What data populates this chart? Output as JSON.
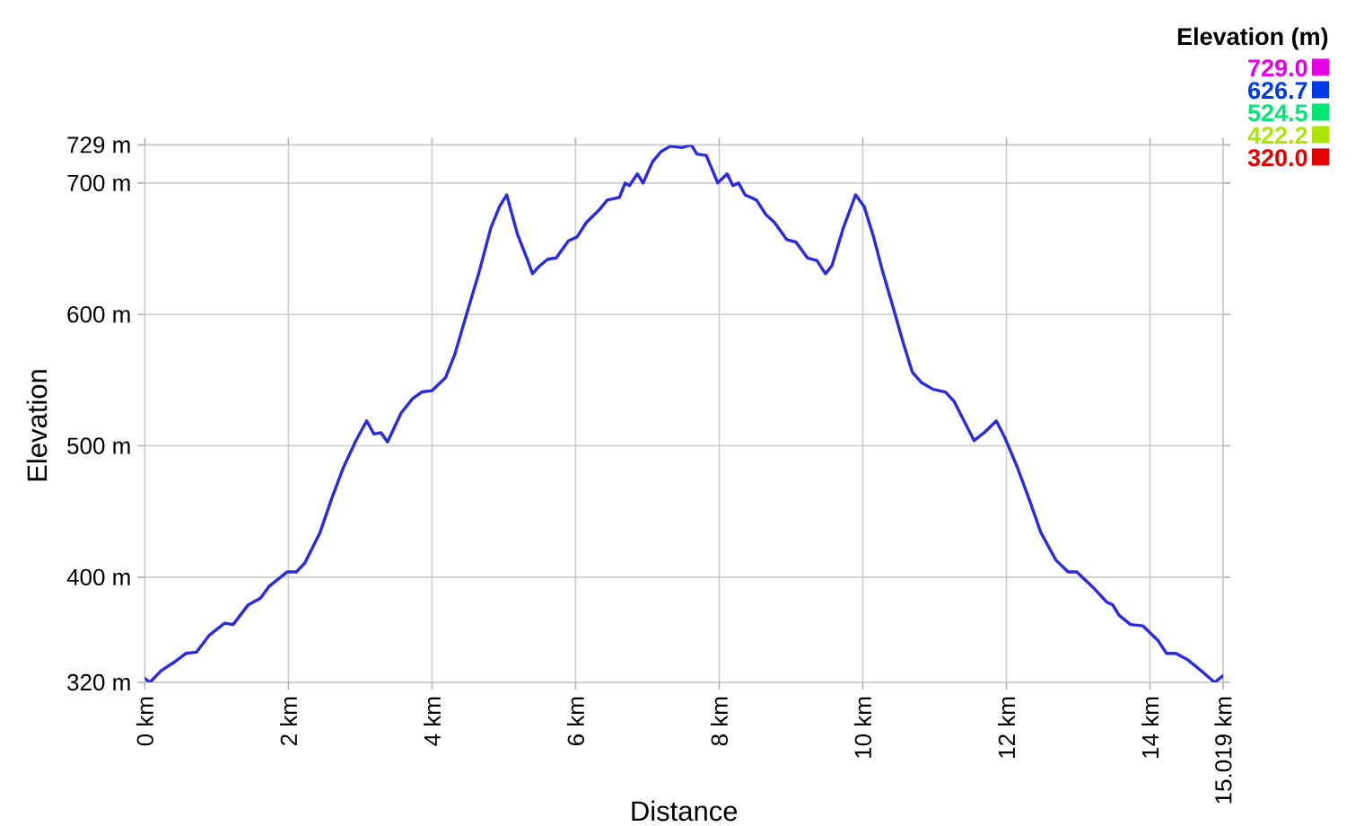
{
  "chart_data": {
    "type": "line",
    "xlabel": "Distance",
    "ylabel": "Elevation",
    "clabel": "Elevation (m)",
    "color": "#2a2ae0",
    "x": [
      0,
      0.07,
      0.23,
      0.4,
      0.57,
      0.72,
      0.9,
      1.11,
      1.23,
      1.44,
      1.61,
      1.73,
      1.98,
      2.11,
      2.23,
      2.44,
      2.61,
      2.77,
      2.94,
      3.09,
      3.19,
      3.29,
      3.38,
      3.57,
      3.73,
      3.86,
      4.0,
      4.19,
      4.32,
      4.48,
      4.65,
      4.82,
      4.94,
      5.04,
      5.19,
      5.32,
      5.4,
      5.48,
      5.61,
      5.73,
      5.9,
      6.02,
      6.15,
      6.32,
      6.44,
      6.61,
      6.69,
      6.75,
      6.86,
      6.94,
      7.07,
      7.19,
      7.32,
      7.48,
      7.61,
      7.69,
      7.82,
      7.98,
      8.11,
      8.19,
      8.27,
      8.36,
      8.52,
      8.65,
      8.77,
      8.94,
      9.07,
      9.23,
      9.36,
      9.48,
      9.57,
      9.73,
      9.9,
      10.02,
      10.15,
      10.27,
      10.44,
      10.56,
      10.69,
      10.82,
      10.98,
      11.15,
      11.27,
      11.4,
      11.55,
      11.69,
      11.86,
      11.98,
      12.15,
      12.32,
      12.48,
      12.69,
      12.86,
      12.98,
      13.23,
      13.4,
      13.48,
      13.57,
      13.73,
      13.9,
      14.11,
      14.23,
      14.36,
      14.53,
      14.73,
      14.9,
      15.019
    ],
    "values": [
      323,
      320,
      329,
      335,
      342,
      343,
      356,
      365,
      364,
      379,
      384,
      393,
      404,
      404,
      411,
      434,
      461,
      484,
      504,
      519,
      509,
      510,
      503,
      525,
      536,
      541,
      542,
      552,
      570,
      600,
      631,
      666,
      682,
      691,
      661,
      643,
      631,
      636,
      642,
      643,
      656,
      659,
      670,
      679,
      687,
      689,
      700,
      698,
      707,
      700,
      716,
      724,
      728,
      727,
      729,
      722,
      721,
      700,
      707,
      698,
      700,
      691,
      687,
      676,
      670,
      657,
      655,
      643,
      641,
      631,
      637,
      666,
      691,
      682,
      659,
      634,
      602,
      579,
      556,
      548,
      543,
      541,
      534,
      520,
      504,
      510,
      519,
      506,
      484,
      459,
      434,
      413,
      404,
      404,
      391,
      381,
      379,
      371,
      364,
      363,
      352,
      342,
      342,
      337,
      328,
      320,
      325
    ],
    "xlim": [
      0,
      15.019
    ],
    "ylim": [
      320,
      729
    ],
    "xticks": [
      {
        "value": 0,
        "label": "0 km"
      },
      {
        "value": 2,
        "label": "2 km"
      },
      {
        "value": 4,
        "label": "4 km"
      },
      {
        "value": 6,
        "label": "6 km"
      },
      {
        "value": 8,
        "label": "8 km"
      },
      {
        "value": 10,
        "label": "10 km"
      },
      {
        "value": 12,
        "label": "12 km"
      },
      {
        "value": 14,
        "label": "14 km"
      },
      {
        "value": 15.019,
        "label": "15.019 km"
      }
    ],
    "yticks": [
      {
        "value": 320,
        "label": "320 m"
      },
      {
        "value": 400,
        "label": "400 m"
      },
      {
        "value": 500,
        "label": "500 m"
      },
      {
        "value": 600,
        "label": "600 m"
      },
      {
        "value": 700,
        "label": "700 m"
      },
      {
        "value": 729,
        "label": "729 m"
      }
    ],
    "clim": [
      320,
      729
    ],
    "cticks": [
      {
        "value": 729,
        "label": "729.0"
      },
      626.7,
      524.5,
      422.2,
      {
        "value": 320,
        "label": "320.0"
      }
    ],
    "grid": true
  }
}
